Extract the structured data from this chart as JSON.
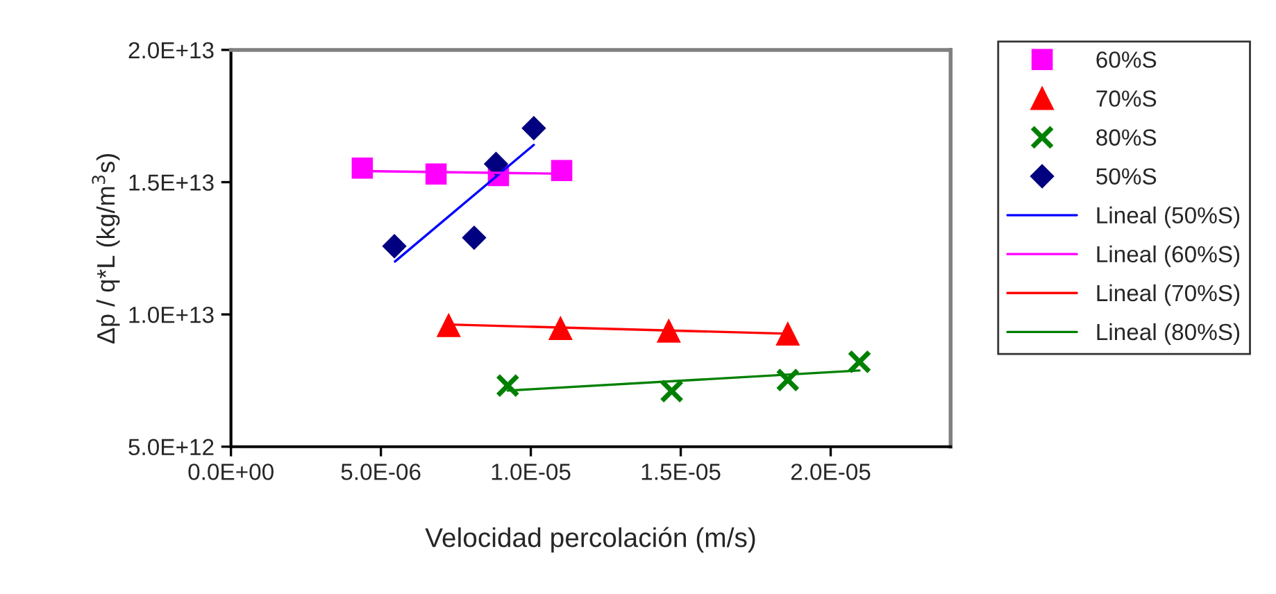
{
  "chart_data": {
    "type": "scatter",
    "xlabel": "Velocidad percolación (m/s)",
    "ylabel": "Δp / q*L (kg/m$^{3}$s)",
    "xlim": [
      0,
      2.4e-05
    ],
    "ylim": [
      5000000000000.0,
      20000000000000.0
    ],
    "xticks": [
      {
        "value": 0,
        "label": "0.0E+00"
      },
      {
        "value": 5e-06,
        "label": "5.0E-06"
      },
      {
        "value": 1e-05,
        "label": "1.0E-05"
      },
      {
        "value": 1.5e-05,
        "label": "1.5E-05"
      },
      {
        "value": 2e-05,
        "label": "2.0E-05"
      }
    ],
    "yticks": [
      {
        "value": 5000000000000.0,
        "label": "5.0E+12"
      },
      {
        "value": 10000000000000.0,
        "label": "1.0E+13"
      },
      {
        "value": 15000000000000.0,
        "label": "1.5E+13"
      },
      {
        "value": 20000000000000.0,
        "label": "2.0E+13"
      }
    ],
    "grid": false,
    "legend": "right",
    "series": [
      {
        "name": "60%S",
        "marker": "square",
        "color": "#ff00ff",
        "x": [
          4.38e-06,
          6.84e-06,
          8.92e-06,
          1.103e-05
        ],
        "values": [
          15530000000000.0,
          15310000000000.0,
          15250000000000.0,
          15440000000000.0
        ]
      },
      {
        "name": "70%S",
        "marker": "triangle",
        "color": "#ff0000",
        "x": [
          7.26e-06,
          1.099e-05,
          1.46e-05,
          1.857e-05
        ],
        "values": [
          9580000000000.0,
          9470000000000.0,
          9370000000000.0,
          9260000000000.0
        ]
      },
      {
        "name": "80%S",
        "marker": "cross",
        "color": "#008000",
        "x": [
          9.23e-06,
          1.47e-05,
          1.857e-05,
          2.096e-05
        ],
        "values": [
          7310000000000.0,
          7100000000000.0,
          7520000000000.0,
          8210000000000.0
        ]
      },
      {
        "name": "50%S",
        "marker": "diamond",
        "color": "#000080",
        "x": [
          5.45e-06,
          8.11e-06,
          8.84e-06,
          1.01e-05
        ],
        "values": [
          12580000000000.0,
          12900000000000.0,
          15690000000000.0,
          17040000000000.0
        ]
      },
      {
        "name": "Lineal (50%S)",
        "type": "line",
        "marker": "none",
        "line_style": "solid",
        "color": "#0000ff",
        "x": [
          5.47e-06,
          1.01e-05
        ],
        "values": [
          12000000000000.0,
          16410000000000.0
        ]
      },
      {
        "name": "Lineal (60%S)",
        "type": "line",
        "marker": "none",
        "line_style": "solid",
        "color": "#ff00ff",
        "x": [
          4.38e-06,
          1.103e-05
        ],
        "values": [
          15420000000000.0,
          15320000000000.0
        ]
      },
      {
        "name": "Lineal (70%S)",
        "type": "line",
        "marker": "none",
        "line_style": "solid",
        "color": "#ff0000",
        "x": [
          7.26e-06,
          1.857e-05
        ],
        "values": [
          9620000000000.0,
          9270000000000.0
        ]
      },
      {
        "name": "Lineal (80%S)",
        "type": "line",
        "marker": "none",
        "line_style": "solid",
        "color": "#008000",
        "x": [
          9.23e-06,
          2.096e-05
        ],
        "values": [
          7120000000000.0,
          7880000000000.0
        ]
      }
    ]
  }
}
